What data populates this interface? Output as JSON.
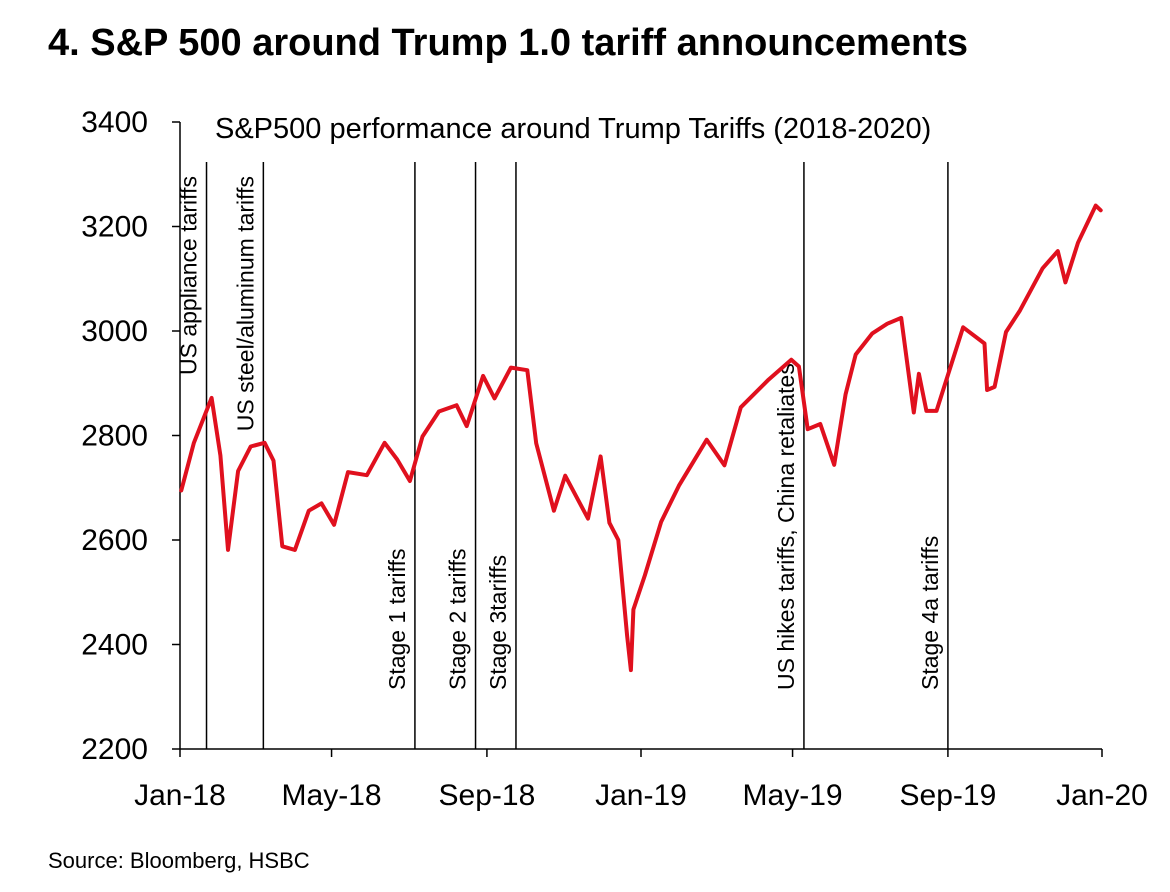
{
  "page": {
    "heading": "4. S&P 500 around Trump 1.0 tariff announcements",
    "source": "Source: Bloomberg, HSBC"
  },
  "chart_data": {
    "type": "line",
    "title": "S&P500 performance around Trump Tariffs (2018-2020)",
    "xlabel": "",
    "ylabel": "",
    "ylim": [
      2200,
      3400
    ],
    "yticks": [
      2200,
      2400,
      2600,
      2800,
      3000,
      3200,
      3400
    ],
    "xlim": [
      "2018-01-01",
      "2020-01-01"
    ],
    "xticks": [
      {
        "label": "Jan-18",
        "date": "2018-01-01"
      },
      {
        "label": "May-18",
        "date": "2018-05-01"
      },
      {
        "label": "Sep-18",
        "date": "2018-09-01"
      },
      {
        "label": "Jan-19",
        "date": "2019-01-01"
      },
      {
        "label": "May-19",
        "date": "2019-05-01"
      },
      {
        "label": "Sep-19",
        "date": "2019-09-01"
      },
      {
        "label": "Jan-20",
        "date": "2020-01-01"
      }
    ],
    "grid": false,
    "line_color": "#e0101e",
    "annotations": [
      {
        "date": "2018-01-22",
        "text": "US appliance tariffs",
        "label_pos": "top"
      },
      {
        "date": "2018-03-08",
        "text": "US steel/aluminum tariffs",
        "label_pos": "top"
      },
      {
        "date": "2018-07-06",
        "text": "Stage 1 tariffs",
        "label_pos": "bottom"
      },
      {
        "date": "2018-08-23",
        "text": "Stage 2 tariffs",
        "label_pos": "bottom"
      },
      {
        "date": "2018-09-24",
        "text": "Stage 3tariffs",
        "label_pos": "bottom"
      },
      {
        "date": "2019-05-10",
        "text": "US hikes tariffs, China retaliates",
        "label_pos": "bottom"
      },
      {
        "date": "2019-09-01",
        "text": "Stage 4a tariffs",
        "label_pos": "bottom"
      }
    ],
    "series": [
      {
        "x": [
          "2018-01-02",
          "2018-01-12",
          "2018-01-26",
          "2018-02-02",
          "2018-02-08",
          "2018-02-16",
          "2018-02-26",
          "2018-03-09",
          "2018-03-16",
          "2018-03-23",
          "2018-04-02",
          "2018-04-13",
          "2018-04-23",
          "2018-05-03",
          "2018-05-14",
          "2018-05-29",
          "2018-06-12",
          "2018-06-22",
          "2018-07-02",
          "2018-07-12",
          "2018-07-25",
          "2018-08-08",
          "2018-08-16",
          "2018-08-29",
          "2018-09-07",
          "2018-09-20",
          "2018-10-03",
          "2018-10-10",
          "2018-10-24",
          "2018-11-02",
          "2018-11-20",
          "2018-11-30",
          "2018-12-07",
          "2018-12-14",
          "2018-12-21",
          "2018-12-24",
          "2018-12-26",
          "2019-01-04",
          "2019-01-17",
          "2019-01-31",
          "2019-02-22",
          "2019-03-08",
          "2019-03-21",
          "2019-04-12",
          "2019-04-30",
          "2019-05-06",
          "2019-05-13",
          "2019-05-23",
          "2019-06-03",
          "2019-06-12",
          "2019-06-20",
          "2019-07-03",
          "2019-07-15",
          "2019-07-26",
          "2019-08-05",
          "2019-08-09",
          "2019-08-15",
          "2019-08-23",
          "2019-09-13",
          "2019-09-30",
          "2019-10-02",
          "2019-10-08",
          "2019-10-17",
          "2019-10-28",
          "2019-11-15",
          "2019-11-27",
          "2019-12-03",
          "2019-12-13",
          "2019-12-27",
          "2019-12-31"
        ],
        "values": [
          2695,
          2786,
          2872,
          2762,
          2581,
          2732,
          2779,
          2786,
          2752,
          2588,
          2581,
          2656,
          2670,
          2629,
          2730,
          2724,
          2786,
          2754,
          2713,
          2798,
          2846,
          2858,
          2818,
          2914,
          2871,
          2930,
          2925,
          2785,
          2656,
          2723,
          2641,
          2760,
          2633,
          2600,
          2417,
          2351,
          2467,
          2532,
          2635,
          2704,
          2792,
          2743,
          2854,
          2907,
          2945,
          2932,
          2812,
          2822,
          2744,
          2879,
          2955,
          2995,
          3014,
          3025,
          2844,
          2918,
          2847,
          2847,
          3007,
          2976,
          2887,
          2893,
          2998,
          3039,
          3120,
          3153,
          3093,
          3169,
          3240,
          3231
        ]
      }
    ]
  }
}
